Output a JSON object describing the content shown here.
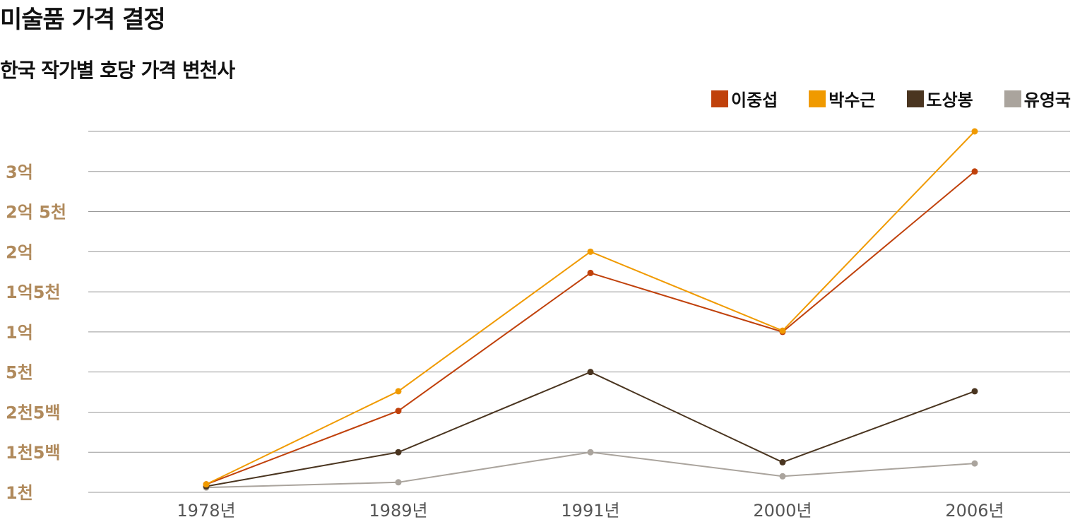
{
  "header": {
    "title": "미술품 가격 결정",
    "subtitle": "한국 작가별 호당 가격 변천사"
  },
  "chart_data": {
    "type": "line",
    "title": "미술품 가격 결정",
    "subtitle": "한국 작가별 호당 가격 변천사",
    "categories": [
      "1978년",
      "1989년",
      "1991년",
      "2000년",
      "2006년"
    ],
    "y_ticks": [
      {
        "label": "1천",
        "value": 0
      },
      {
        "label": "1천5백",
        "value": 1
      },
      {
        "label": "2천5백",
        "value": 2
      },
      {
        "label": "5천",
        "value": 3
      },
      {
        "label": "1억",
        "value": 4
      },
      {
        "label": "1억5천",
        "value": 5
      },
      {
        "label": "2억",
        "value": 6
      },
      {
        "label": "2억 5천",
        "value": 7
      },
      {
        "label": "3억",
        "value": 8
      },
      {
        "label": "",
        "value": 9
      }
    ],
    "ylim": [
      0,
      9
    ],
    "legend_position": "top-right",
    "grid": true,
    "series": [
      {
        "name": "이중섭",
        "color": "#c0410b",
        "values": [
          0.2,
          2.03,
          5.47,
          4.0,
          8.0
        ]
      },
      {
        "name": "박수근",
        "color": "#f09a00",
        "values": [
          0.2,
          2.52,
          6.0,
          4.03,
          9.0
        ]
      },
      {
        "name": "도상봉",
        "color": "#4a3520",
        "values": [
          0.15,
          1.0,
          3.0,
          0.75,
          2.52
        ]
      },
      {
        "name": "유영국",
        "color": "#aaa49d",
        "values": [
          0.12,
          0.25,
          1.0,
          0.4,
          0.72
        ]
      }
    ],
    "gridline_color": "#9a9a9a"
  }
}
